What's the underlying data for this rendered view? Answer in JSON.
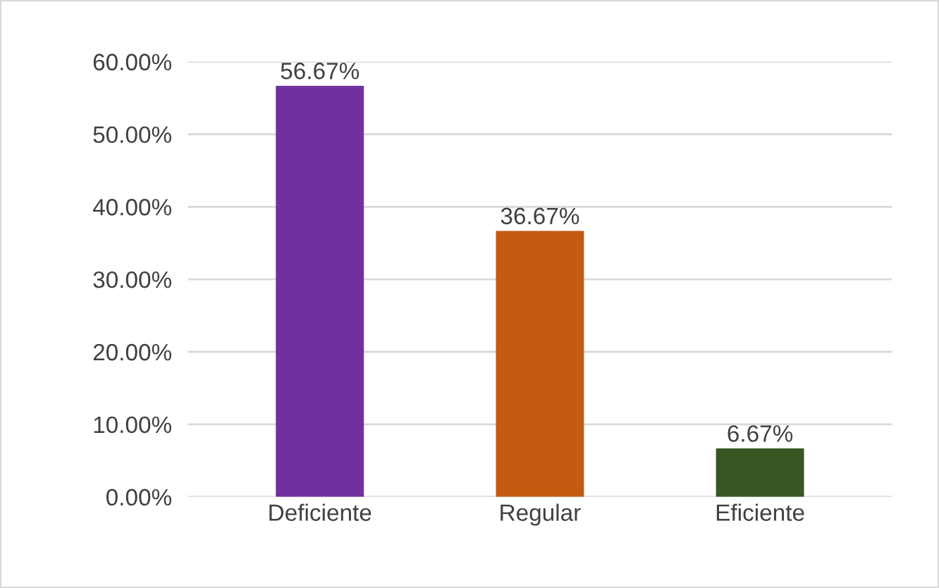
{
  "chart_data": {
    "type": "bar",
    "categories": [
      "Deficiente",
      "Regular",
      "Eficiente"
    ],
    "values": [
      56.67,
      36.67,
      6.67
    ],
    "colors": [
      "#7030a0",
      "#c55a11",
      "#375623"
    ],
    "value_labels": [
      "56.67%",
      "36.67%",
      "6.67%"
    ],
    "ylim": [
      0,
      60
    ],
    "yticks": [
      {
        "value": 0,
        "label": "0.00%"
      },
      {
        "value": 10,
        "label": "10.00%"
      },
      {
        "value": 20,
        "label": "20.00%"
      },
      {
        "value": 30,
        "label": "30.00%"
      },
      {
        "value": 40,
        "label": "40.00%"
      },
      {
        "value": 50,
        "label": "50.00%"
      },
      {
        "value": 60,
        "label": "60.00%"
      }
    ],
    "grid": "y",
    "legend": false
  }
}
